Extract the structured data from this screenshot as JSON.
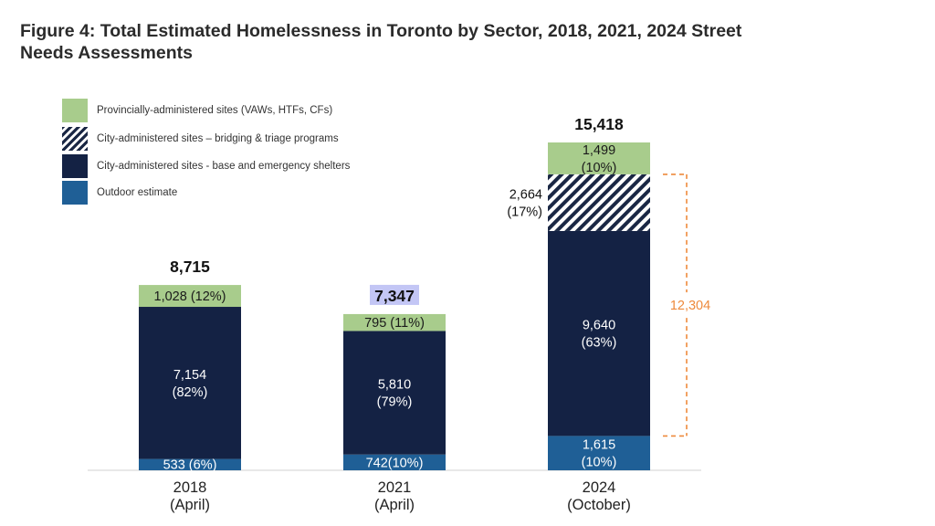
{
  "title": {
    "line1": "Figure 4: Total Estimated Homelessness in Toronto by Sector, 2018, 2021, 2024 Street",
    "line2": "Needs Assessments"
  },
  "colors": {
    "provincial": "#a8cc8c",
    "bridging_hatch": "#1a2744",
    "base_shelters": "#142244",
    "outdoor": "#1f5f96",
    "bracket": "#ee8a3c",
    "highlight_2021": "#c3c6f5"
  },
  "chart_data": {
    "type": "bar",
    "stacked": true,
    "categories": [
      "2018",
      "2021",
      "2024"
    ],
    "category_sublabels": [
      "(April)",
      "(April)",
      "(October)"
    ],
    "legend": [
      {
        "key": "provincial",
        "label": "Provincially-administered sites (VAWs, HTFs, CFs)",
        "style": "solid"
      },
      {
        "key": "bridging",
        "label": "City-administered sites – bridging & triage programs",
        "style": "hatched"
      },
      {
        "key": "base",
        "label": "City-administered sites - base and emergency shelters",
        "style": "solid"
      },
      {
        "key": "outdoor",
        "label": "Outdoor estimate",
        "style": "solid"
      }
    ],
    "series": [
      {
        "key": "outdoor",
        "values": [
          533,
          742,
          1615
        ],
        "labels": [
          [
            "533 (6%)"
          ],
          [
            "742(10%)"
          ],
          [
            "1,615",
            "(10%)"
          ]
        ]
      },
      {
        "key": "base",
        "values": [
          7154,
          5810,
          9640
        ],
        "labels": [
          [
            "7,154",
            "(82%)"
          ],
          [
            "5,810",
            "(79%)"
          ],
          [
            "9,640",
            "(63%)"
          ]
        ]
      },
      {
        "key": "bridging",
        "values": [
          0,
          0,
          2664
        ],
        "labels": [
          [],
          [],
          [
            "2,664",
            "(17%)"
          ]
        ]
      },
      {
        "key": "provincial",
        "values": [
          1028,
          795,
          1499
        ],
        "labels": [
          [
            "1,028 (12%)"
          ],
          [
            "795 (11%)"
          ],
          [
            "1,499",
            "(10%)"
          ]
        ]
      }
    ],
    "totals": [
      "8,715",
      "7,347",
      "15,418"
    ],
    "highlighted_total_index": 1,
    "bracket": {
      "category_index": 2,
      "label": "12,304"
    },
    "ylim": [
      0,
      16000
    ],
    "grid": false
  }
}
